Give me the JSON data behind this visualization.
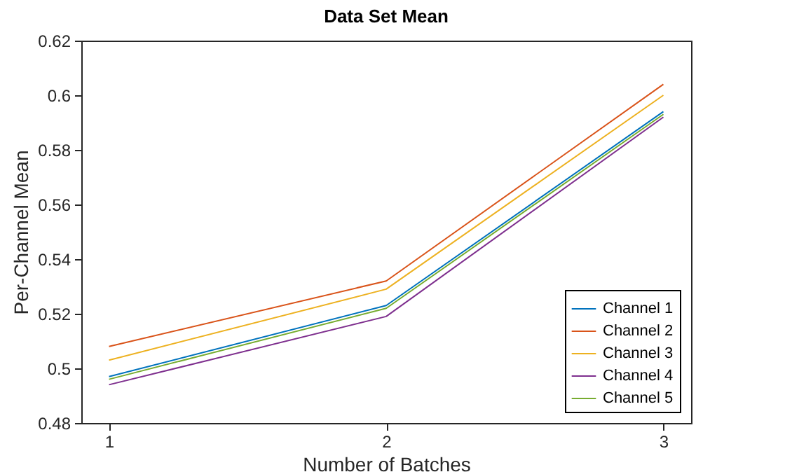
{
  "chart_data": {
    "type": "line",
    "title": "Data Set Mean",
    "xlabel": "Number of Batches",
    "ylabel": "Per-Channel Mean",
    "x": [
      1,
      2,
      3
    ],
    "xlim": [
      0.9,
      3.1
    ],
    "xticks": [
      1,
      2,
      3
    ],
    "ylim": [
      0.48,
      0.62
    ],
    "yticks": [
      0.48,
      0.5,
      0.52,
      0.54,
      0.56,
      0.58,
      0.6,
      0.62
    ],
    "legend": "bottom right",
    "grid": false,
    "series": [
      {
        "name": "Channel 1",
        "color": "#0072bd",
        "values": [
          0.497,
          0.523,
          0.594
        ]
      },
      {
        "name": "Channel 2",
        "color": "#d95319",
        "values": [
          0.508,
          0.532,
          0.604
        ]
      },
      {
        "name": "Channel 3",
        "color": "#edb120",
        "values": [
          0.503,
          0.529,
          0.6
        ]
      },
      {
        "name": "Channel 4",
        "color": "#7e2f8e",
        "values": [
          0.494,
          0.519,
          0.592
        ]
      },
      {
        "name": "Channel 5",
        "color": "#77ac30",
        "values": [
          0.496,
          0.522,
          0.593
        ]
      }
    ]
  }
}
